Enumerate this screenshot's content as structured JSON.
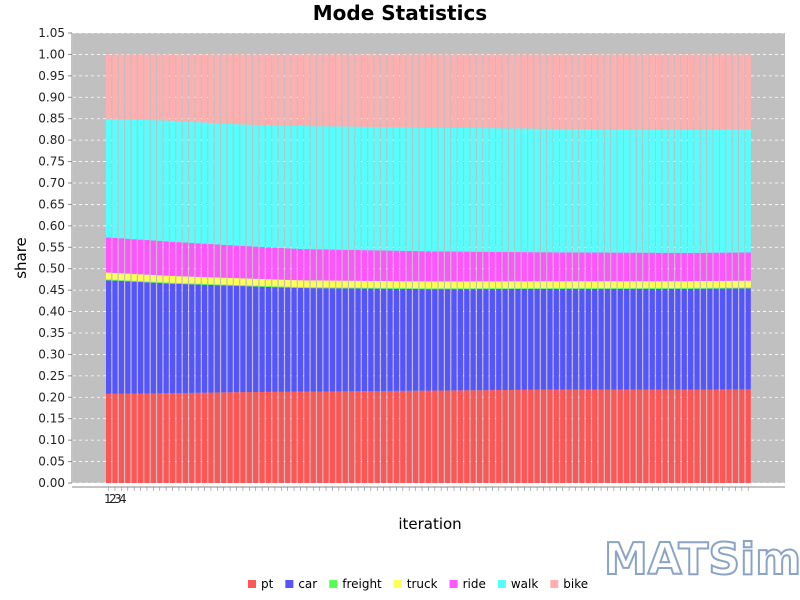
{
  "chart_data": {
    "type": "bar",
    "stacked": true,
    "title": "Mode Statistics",
    "xlabel": "iteration",
    "ylabel": "share",
    "ylim": [
      0,
      1.05
    ],
    "yticks": [
      "0.00",
      "0.05",
      "0.10",
      "0.15",
      "0.20",
      "0.25",
      "0.30",
      "0.35",
      "0.40",
      "0.45",
      "0.50",
      "0.55",
      "0.60",
      "0.65",
      "0.70",
      "0.75",
      "0.80",
      "0.85",
      "0.90",
      "0.95",
      "1.00",
      "1.05"
    ],
    "x_range": [
      0,
      100
    ],
    "x_visible_tick_labels": [
      "1",
      "2",
      "3",
      "4"
    ],
    "grid": true,
    "legend_position": "bottom",
    "series": [
      {
        "name": "pt",
        "color": "#ff5555",
        "anchors": [
          [
            0,
            0.208
          ],
          [
            10,
            0.21
          ],
          [
            20,
            0.212
          ],
          [
            30,
            0.213
          ],
          [
            50,
            0.215
          ],
          [
            70,
            0.217
          ],
          [
            90,
            0.218
          ],
          [
            100,
            0.219
          ]
        ]
      },
      {
        "name": "car",
        "color": "#5555ff",
        "anchors": [
          [
            0,
            0.265
          ],
          [
            10,
            0.256
          ],
          [
            20,
            0.248
          ],
          [
            30,
            0.242
          ],
          [
            50,
            0.236
          ],
          [
            70,
            0.234
          ],
          [
            90,
            0.235
          ],
          [
            100,
            0.236
          ]
        ]
      },
      {
        "name": "freight",
        "color": "#55ff55",
        "anchors": [
          [
            0,
            0.002
          ],
          [
            100,
            0.002
          ]
        ]
      },
      {
        "name": "truck",
        "color": "#ffff55",
        "anchors": [
          [
            0,
            0.016
          ],
          [
            20,
            0.016
          ],
          [
            50,
            0.016
          ],
          [
            100,
            0.016
          ]
        ]
      },
      {
        "name": "ride",
        "color": "#ff55ff",
        "anchors": [
          [
            0,
            0.082
          ],
          [
            10,
            0.08
          ],
          [
            20,
            0.076
          ],
          [
            30,
            0.073
          ],
          [
            50,
            0.07
          ],
          [
            70,
            0.067
          ],
          [
            90,
            0.066
          ],
          [
            100,
            0.066
          ]
        ]
      },
      {
        "name": "walk",
        "color": "#55ffff",
        "anchors": [
          [
            0,
            0.277
          ],
          [
            10,
            0.283
          ],
          [
            20,
            0.283
          ],
          [
            30,
            0.287
          ],
          [
            50,
            0.288
          ],
          [
            70,
            0.287
          ],
          [
            90,
            0.288
          ],
          [
            100,
            0.288
          ]
        ]
      },
      {
        "name": "bike",
        "color": "#ffafaf",
        "anchors": [
          [
            0,
            0.15
          ],
          [
            10,
            0.155
          ],
          [
            20,
            0.163
          ],
          [
            30,
            0.167
          ],
          [
            50,
            0.17
          ],
          [
            70,
            0.173
          ],
          [
            90,
            0.175
          ],
          [
            100,
            0.175
          ]
        ]
      }
    ]
  },
  "logo": {
    "text": "MATSim"
  }
}
